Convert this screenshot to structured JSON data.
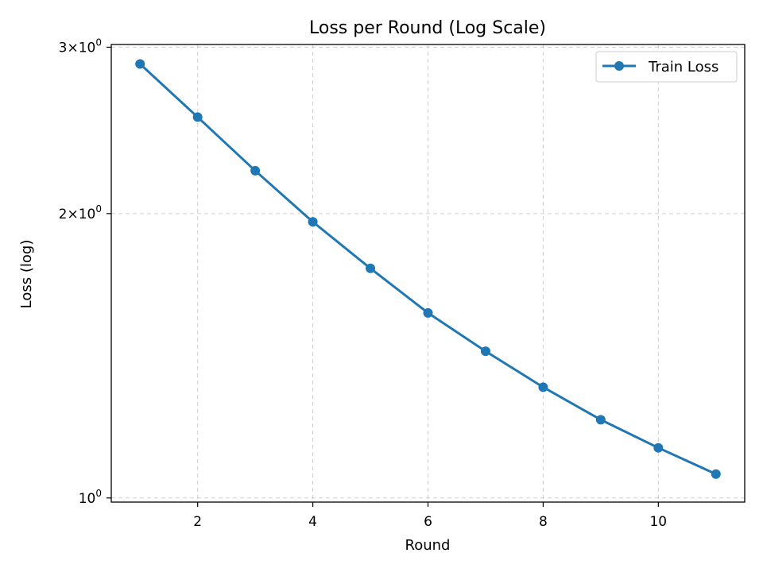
{
  "chart_data": {
    "type": "line",
    "title": "Loss per Round (Log Scale)",
    "xlabel": "Round",
    "ylabel": "Loss (log)",
    "x_scale": "linear",
    "y_scale": "log",
    "xlim": [
      0.5,
      11.5
    ],
    "ylim": [
      0.99,
      3.02
    ],
    "x_ticks": [
      2,
      4,
      6,
      8,
      10
    ],
    "x_tick_labels": [
      "2",
      "4",
      "6",
      "8",
      "10"
    ],
    "y_ticks": [
      {
        "value": 1,
        "mantissa": "",
        "exponent": "0",
        "base": "10"
      },
      {
        "value": 2,
        "mantissa": "2",
        "exponent": "0",
        "base": "10"
      },
      {
        "value": 3,
        "mantissa": "3",
        "exponent": "0",
        "base": "10"
      }
    ],
    "grid": true,
    "legend_position": "top-right",
    "series": [
      {
        "name": "Train Loss",
        "color": "#1f77b4",
        "marker": "circle",
        "x": [
          1,
          2,
          3,
          4,
          5,
          6,
          7,
          8,
          9,
          10,
          11
        ],
        "y": [
          2.88,
          2.53,
          2.22,
          1.96,
          1.75,
          1.57,
          1.43,
          1.31,
          1.21,
          1.13,
          1.06
        ]
      }
    ]
  }
}
